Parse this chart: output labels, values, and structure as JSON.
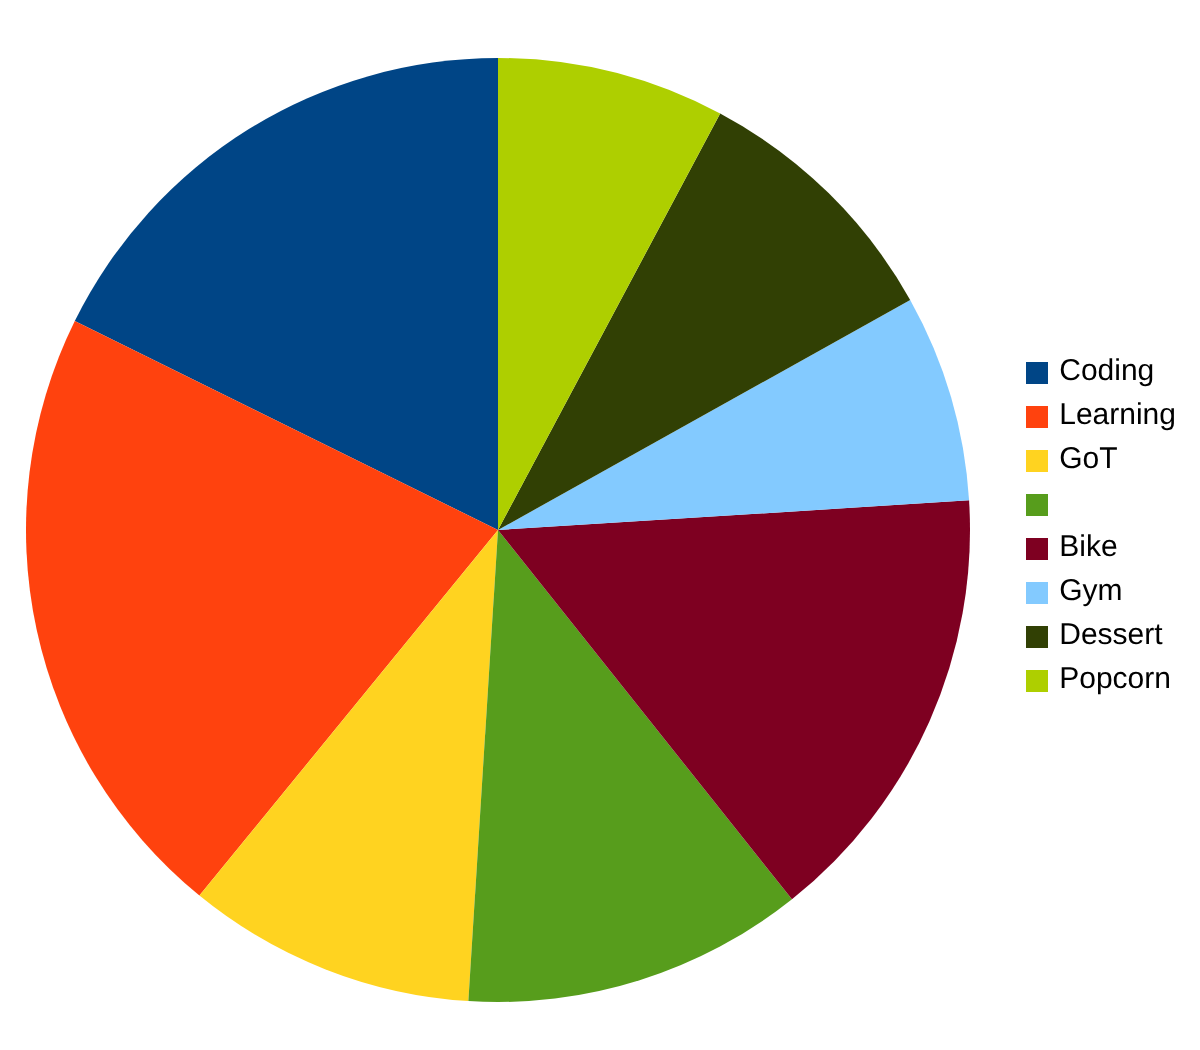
{
  "chart_data": {
    "type": "pie",
    "categories": [
      "Coding",
      "Learning",
      "GoT",
      null,
      "Bike",
      "Gym",
      "Dessert",
      "Popcorn"
    ],
    "values": [
      17.7,
      21.4,
      9.9,
      11.7,
      15.3,
      7.1,
      9.1,
      7.8
    ],
    "colors": [
      "#004586",
      "#ff420e",
      "#ffd320",
      "#579d1c",
      "#7e0021",
      "#83caff",
      "#314004",
      "#aecf00"
    ],
    "legend": "right"
  }
}
